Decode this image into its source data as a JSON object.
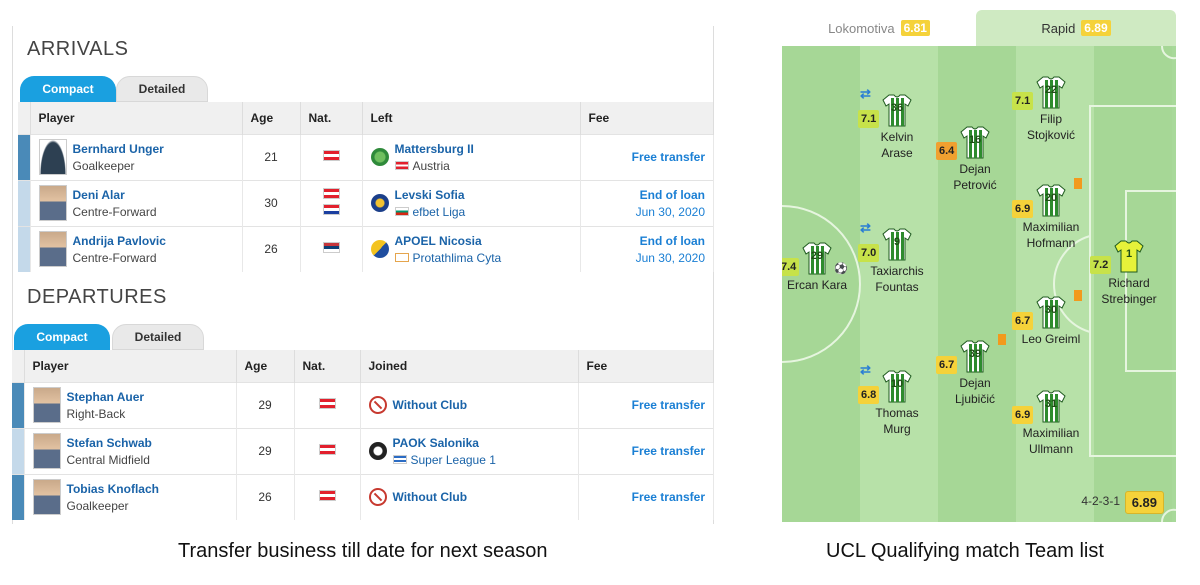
{
  "transfers": {
    "arrivals_title": "ARRIVALS",
    "departures_title": "DEPARTURES",
    "tabs": {
      "compact": "Compact",
      "detailed": "Detailed"
    },
    "arrivals_headers": {
      "player": "Player",
      "age": "Age",
      "nat": "Nat.",
      "club": "Left",
      "fee": "Fee"
    },
    "departures_headers": {
      "player": "Player",
      "age": "Age",
      "nat": "Nat.",
      "club": "Joined",
      "fee": "Fee"
    },
    "arrivals": [
      {
        "name": "Bernhard Unger",
        "position": "Goalkeeper",
        "age": "21",
        "club": "Mattersburg II",
        "league": "Austria",
        "fee": "Free transfer",
        "fee_date": ""
      },
      {
        "name": "Deni Alar",
        "position": "Centre-Forward",
        "age": "30",
        "club": "Levski Sofia",
        "league": "efbet Liga",
        "fee": "End of loan",
        "fee_date": "Jun 30, 2020"
      },
      {
        "name": "Andrija Pavlovic",
        "position": "Centre-Forward",
        "age": "26",
        "club": "APOEL Nicosia",
        "league": "Protathlima Cyta",
        "fee": "End of loan",
        "fee_date": "Jun 30, 2020"
      }
    ],
    "departures": [
      {
        "name": "Stephan Auer",
        "position": "Right-Back",
        "age": "29",
        "club": "Without Club",
        "league": "",
        "fee": "Free transfer"
      },
      {
        "name": "Stefan Schwab",
        "position": "Central Midfield",
        "age": "29",
        "club": "PAOK Salonika",
        "league": "Super League 1",
        "fee": "Free transfer"
      },
      {
        "name": "Tobias Knoflach",
        "position": "Goalkeeper",
        "age": "26",
        "club": "Without Club",
        "league": "",
        "fee": "Free transfer"
      }
    ],
    "caption": "Transfer business till date for next season"
  },
  "lineup": {
    "home_team": "Lokomotiva",
    "home_rating": "6.81",
    "away_team": "Rapid",
    "away_rating": "6.89",
    "formation": "4-2-3-1",
    "team_rating": "6.89",
    "caption": "UCL Qualifying match Team list",
    "players": {
      "ercan": {
        "num": "29",
        "first": "Ercan Kara",
        "last": "",
        "rating": "7.4"
      },
      "kelvin": {
        "num": "36",
        "first": "Kelvin",
        "last": "Arase",
        "rating": "7.1"
      },
      "taxiarchis": {
        "num": "9",
        "first": "Taxiarchis",
        "last": "Fountas",
        "rating": "7.0"
      },
      "thomas": {
        "num": "10",
        "first": "Thomas",
        "last": "Murg",
        "rating": "6.8"
      },
      "petrovic": {
        "num": "16",
        "first": "Dejan",
        "last": "Petrović",
        "rating": "6.4"
      },
      "ljubicic": {
        "num": "39",
        "first": "Dejan",
        "last": "Ljubičić",
        "rating": "6.7"
      },
      "filip": {
        "num": "22",
        "first": "Filip",
        "last": "Stojković",
        "rating": "7.1"
      },
      "hofmann": {
        "num": "20",
        "first": "Maximilian",
        "last": "Hofmann",
        "rating": "6.9"
      },
      "greiml": {
        "num": "30",
        "first": "Leo Greiml",
        "last": "",
        "rating": "6.7"
      },
      "ullmann": {
        "num": "31",
        "first": "Maximilian",
        "last": "Ullmann",
        "rating": "6.9"
      },
      "strebinger": {
        "num": "1",
        "first": "Richard",
        "last": "Strebinger",
        "rating": "7.2"
      }
    },
    "colors": {
      "rating_green": "#c7e24a",
      "rating_yellow": "#f5d23a",
      "rating_orange": "#f0a030",
      "pitch": "#a8d99a"
    }
  }
}
